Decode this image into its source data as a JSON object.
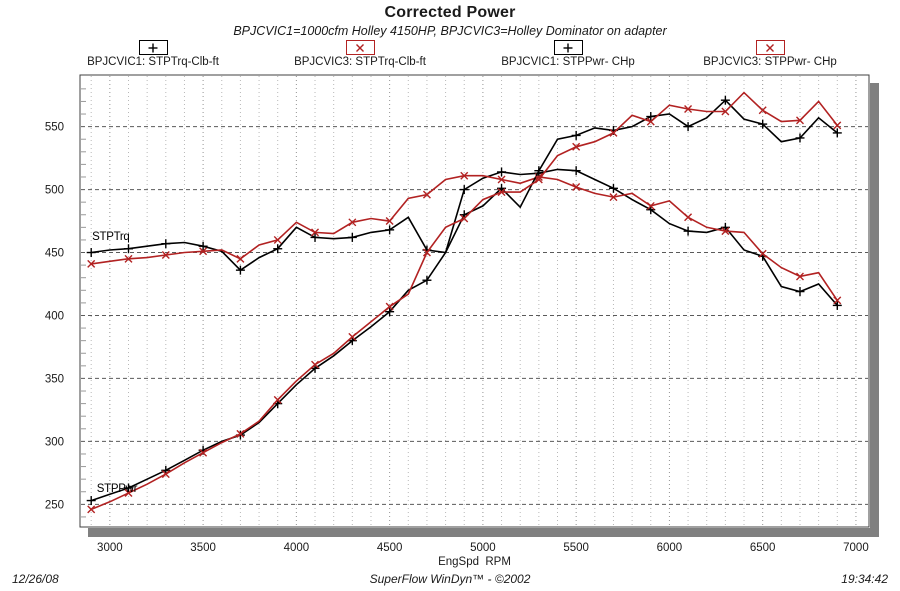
{
  "title": "Corrected Power",
  "subtitle": "BPJCVIC1=1000cfm Holley 4150HP, BPJCVIC3=Holley Dominator on adapter",
  "footer": {
    "date": "12/26/08",
    "app": "SuperFlow WinDyn™ - ©2002",
    "time": "19:34:42"
  },
  "colors": {
    "series_bpjcvic1": "#000000",
    "series_bpjcvic3": "#b22222",
    "grid_minor": "#b8b8b8",
    "grid_major": "#949494",
    "grid_horizontal": "#5a5a5a",
    "shadow": "#808080",
    "plot_border": "#404040",
    "text": "#1a1a1a"
  },
  "legend_centers": [
    153,
    360,
    568,
    770
  ],
  "chart_data": {
    "type": "line",
    "title": "Corrected Power",
    "xlabel": "EngSpd  RPM",
    "ylabel": "",
    "x_ticks": [
      3000,
      3500,
      4000,
      4500,
      5000,
      5500,
      6000,
      6500,
      7000
    ],
    "y_ticks": [
      250,
      300,
      350,
      400,
      450,
      500,
      550
    ],
    "xlim": [
      2840,
      7070
    ],
    "ylim": [
      232,
      591
    ],
    "grid": {
      "x_minor_step": 100,
      "x_major_step": 500,
      "y_step": 50,
      "y_minor_tick_step": 10
    },
    "marker_every": 2,
    "legend_position": "top",
    "x": [
      2900,
      3000,
      3100,
      3200,
      3300,
      3400,
      3500,
      3600,
      3700,
      3800,
      3900,
      4000,
      4100,
      4200,
      4300,
      4400,
      4500,
      4600,
      4700,
      4800,
      4900,
      5000,
      5100,
      5200,
      5300,
      5400,
      5500,
      5600,
      5700,
      5800,
      5900,
      6000,
      6100,
      6200,
      6300,
      6400,
      6500,
      6600,
      6700,
      6800,
      6900
    ],
    "series": [
      {
        "name": "BPJCVIC1: STPTrq-Clb-ft",
        "color": "#000000",
        "marker": "plus",
        "values": [
          450,
          452,
          453,
          455,
          457,
          458,
          455,
          451,
          436,
          446,
          453,
          470,
          462,
          461,
          462,
          466,
          468,
          478,
          452,
          450,
          500,
          509,
          514,
          512,
          513,
          516,
          515,
          508,
          501,
          492,
          484,
          473,
          467,
          466,
          470,
          452,
          447,
          423,
          419,
          425,
          408
        ]
      },
      {
        "name": "BPJCVIC3: STPTrq-Clb-ft",
        "color": "#b22222",
        "marker": "cross",
        "values": [
          441,
          443,
          445,
          446,
          448,
          450,
          451,
          452,
          445,
          456,
          460,
          474,
          466,
          465,
          474,
          477,
          475,
          493,
          496,
          508,
          511,
          511,
          508,
          505,
          510,
          508,
          502,
          497,
          494,
          497,
          487,
          491,
          478,
          470,
          467,
          466,
          449,
          438,
          431,
          434,
          412
        ]
      },
      {
        "name": "BPJCVIC1: STPPwr- CHp",
        "color": "#000000",
        "marker": "plus",
        "values": [
          253,
          258,
          263,
          270,
          277,
          285,
          293,
          300,
          305,
          315,
          330,
          345,
          358,
          368,
          380,
          391,
          403,
          420,
          428,
          450,
          480,
          487,
          501,
          486,
          515,
          540,
          543,
          549,
          547,
          550,
          558,
          560,
          550,
          557,
          571,
          556,
          552,
          538,
          541,
          557,
          545
        ]
      },
      {
        "name": "BPJCVIC3: STPPwr- CHp",
        "color": "#b22222",
        "marker": "cross",
        "values": [
          246,
          252,
          259,
          266,
          274,
          283,
          291,
          299,
          306,
          316,
          333,
          348,
          361,
          370,
          383,
          395,
          407,
          417,
          450,
          470,
          477,
          492,
          498,
          498,
          508,
          527,
          534,
          538,
          545,
          559,
          554,
          567,
          564,
          562,
          562,
          577,
          563,
          554,
          555,
          570,
          551
        ]
      }
    ],
    "annotations": [
      {
        "text": "STPTrq",
        "rpm": 2905,
        "value": 463
      },
      {
        "text": "STPPwr",
        "rpm": 2930,
        "value": 263
      }
    ]
  }
}
